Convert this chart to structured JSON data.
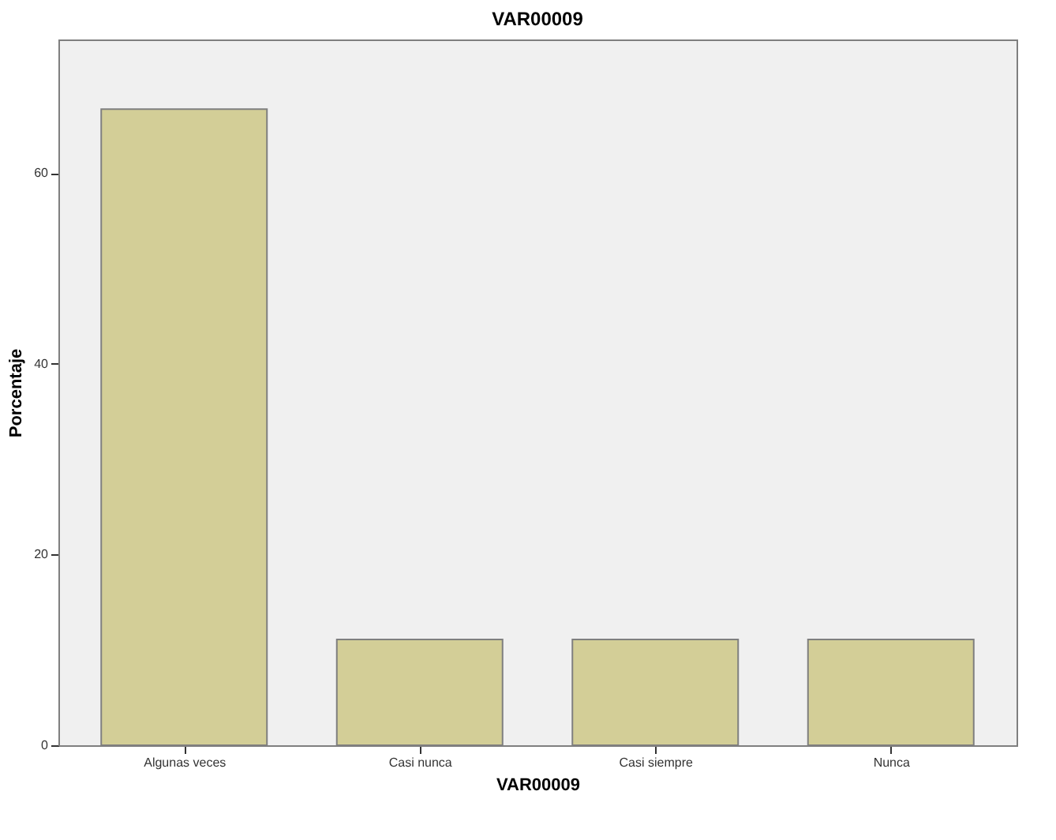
{
  "chart_data": {
    "type": "bar",
    "title": "VAR00009",
    "xlabel": "VAR00009",
    "ylabel": "Porcentaje",
    "categories": [
      "Algunas veces",
      "Casi nunca",
      "Casi siempre",
      "Nunca"
    ],
    "values": [
      66.7,
      11.1,
      11.1,
      11.1
    ],
    "color": "#d3ce97",
    "ylim": [
      0,
      74
    ],
    "yticks": [
      0,
      20,
      40,
      60
    ],
    "grid": false
  }
}
